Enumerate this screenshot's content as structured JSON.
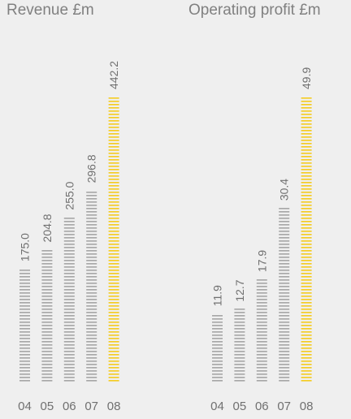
{
  "colors": {
    "past": "#a6a6a6",
    "current": "#f5cb1e",
    "text": "#707070",
    "title": "#808080",
    "background": "#efefef"
  },
  "chart_data": [
    {
      "type": "bar",
      "title": "Revenue £m",
      "categories": [
        "04",
        "05",
        "06",
        "07",
        "08"
      ],
      "values": [
        175.0,
        204.8,
        255.0,
        296.8,
        442.2
      ],
      "value_labels": [
        "175.0",
        "204.8",
        "255.0",
        "296.8",
        "442.2"
      ],
      "highlight_index": 4,
      "ylim": [
        0,
        442.2
      ],
      "xlabel": "",
      "ylabel": "",
      "grid": false
    },
    {
      "type": "bar",
      "title": "Operating profit £m",
      "categories": [
        "04",
        "05",
        "06",
        "07",
        "08"
      ],
      "values": [
        11.9,
        12.7,
        17.9,
        30.4,
        49.9
      ],
      "value_labels": [
        "11.9",
        "12.7",
        "17.9",
        "30.4",
        "49.9"
      ],
      "highlight_index": 4,
      "ylim": [
        0,
        49.9
      ],
      "xlabel": "",
      "ylabel": "",
      "grid": false
    }
  ]
}
